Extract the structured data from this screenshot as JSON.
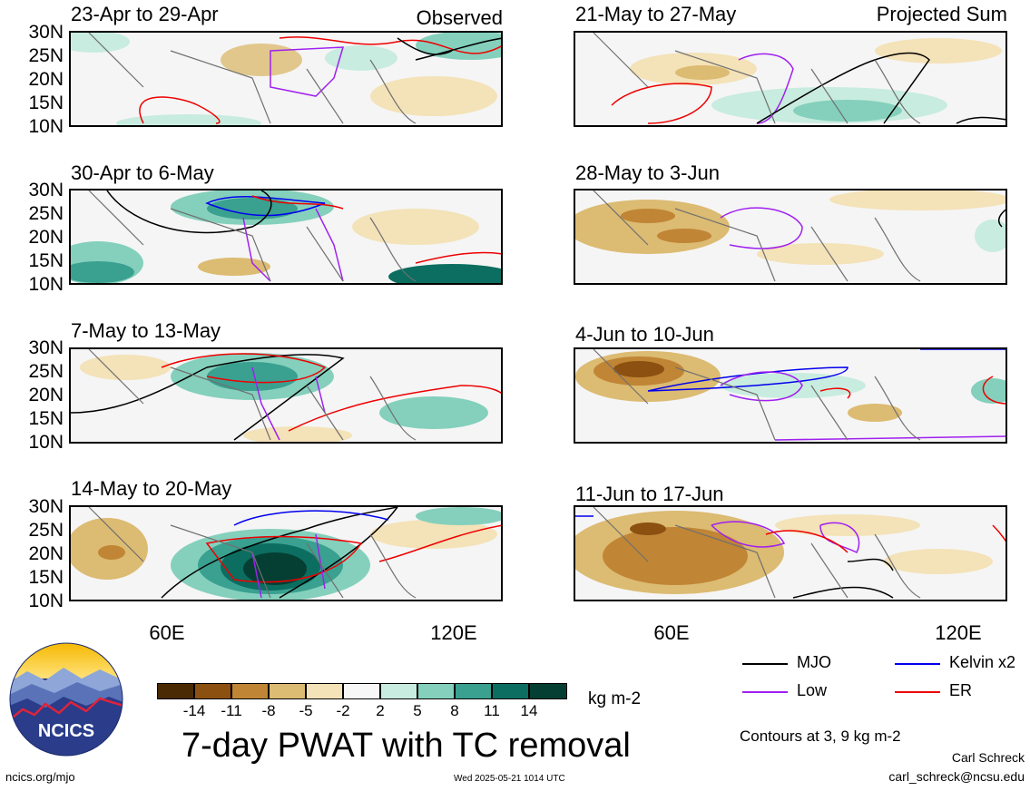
{
  "panels_left": [
    {
      "title": "23-Apr to 29-Apr",
      "label": "Observed"
    },
    {
      "title": "30-Apr to 6-May",
      "label": ""
    },
    {
      "title": "7-May to 13-May",
      "label": ""
    },
    {
      "title": "14-May to 20-May",
      "label": ""
    }
  ],
  "panels_right": [
    {
      "title": "21-May to 27-May",
      "label": "Projected Sum"
    },
    {
      "title": "28-May to 3-Jun",
      "label": ""
    },
    {
      "title": "4-Jun to 10-Jun",
      "label": ""
    },
    {
      "title": "11-Jun to 17-Jun",
      "label": ""
    }
  ],
  "y_ticks": [
    "30N",
    "25N",
    "20N",
    "15N",
    "10N"
  ],
  "x_ticks": [
    "60E",
    "120E"
  ],
  "legend": {
    "mjo": "MJO",
    "kelvin": "Kelvin x2",
    "low": "Low",
    "er": "ER",
    "colors": {
      "mjo": "#000000",
      "kelvin": "#0000ee",
      "low": "#a020f0",
      "er": "#ee0000"
    }
  },
  "colorbar": {
    "labels": [
      "-14",
      "-11",
      "-8",
      "-5",
      "-2",
      "2",
      "5",
      "8",
      "11",
      "14"
    ],
    "colors": [
      "#4a2a05",
      "#8c5010",
      "#c08535",
      "#dcbb72",
      "#f4e2b8",
      "#f7f7f7",
      "#c8ecdf",
      "#84d0bc",
      "#3aa090",
      "#0b6e60",
      "#053f33"
    ],
    "units": "kg m-2"
  },
  "main_title": "7-day PWAT with TC removal",
  "contour_note": "Contours at 3, 9 kg m-2",
  "author": "Carl Schreck",
  "email": "carl_schreck@ncsu.edu",
  "url": "ncics.org/mjo",
  "timestamp": "Wed 2025-05-21 1014 UTC",
  "logo_text": "NCICS"
}
